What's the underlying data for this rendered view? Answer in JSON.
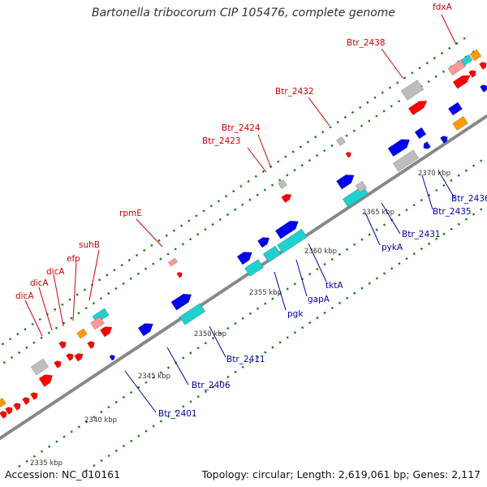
{
  "title": "Bartonella tribocorum CIP 105476, complete genome",
  "footer": {
    "accession": "Accession: NC_010161",
    "summary": "Topology: circular; Length: 2,619,061 bp; Genes: 2,117"
  },
  "colors": {
    "backbone": "#888888",
    "tick": "#1a7a1a",
    "red": "#ff0000",
    "blue": "#0000ee",
    "cyan": "#20d0d0",
    "orange": "#ff9900",
    "gray": "#bdbdbd",
    "pink": "#ff9999",
    "label_red": "#cc0000",
    "label_blue": "#0000aa"
  },
  "scale_labels": [
    "2335 kbp",
    "2340 kbp",
    "2345 kbp",
    "2350 kbp",
    "2355 kbp",
    "2360 kbp",
    "2365 kbp",
    "2370 kbp"
  ],
  "gene_labels": [
    "fdxA",
    "Btr_2438",
    "Btr_2432",
    "Btr_2424",
    "Btr_2423",
    "rpmE",
    "suhB",
    "efp",
    "dicA",
    "dicA",
    "dicA",
    "Btr_2436",
    "Btr_2435",
    "Btr_2431",
    "pykA",
    "tktA",
    "gapA",
    "pgk",
    "Btr_2411",
    "Btr_2406",
    "Btr_2401"
  ]
}
